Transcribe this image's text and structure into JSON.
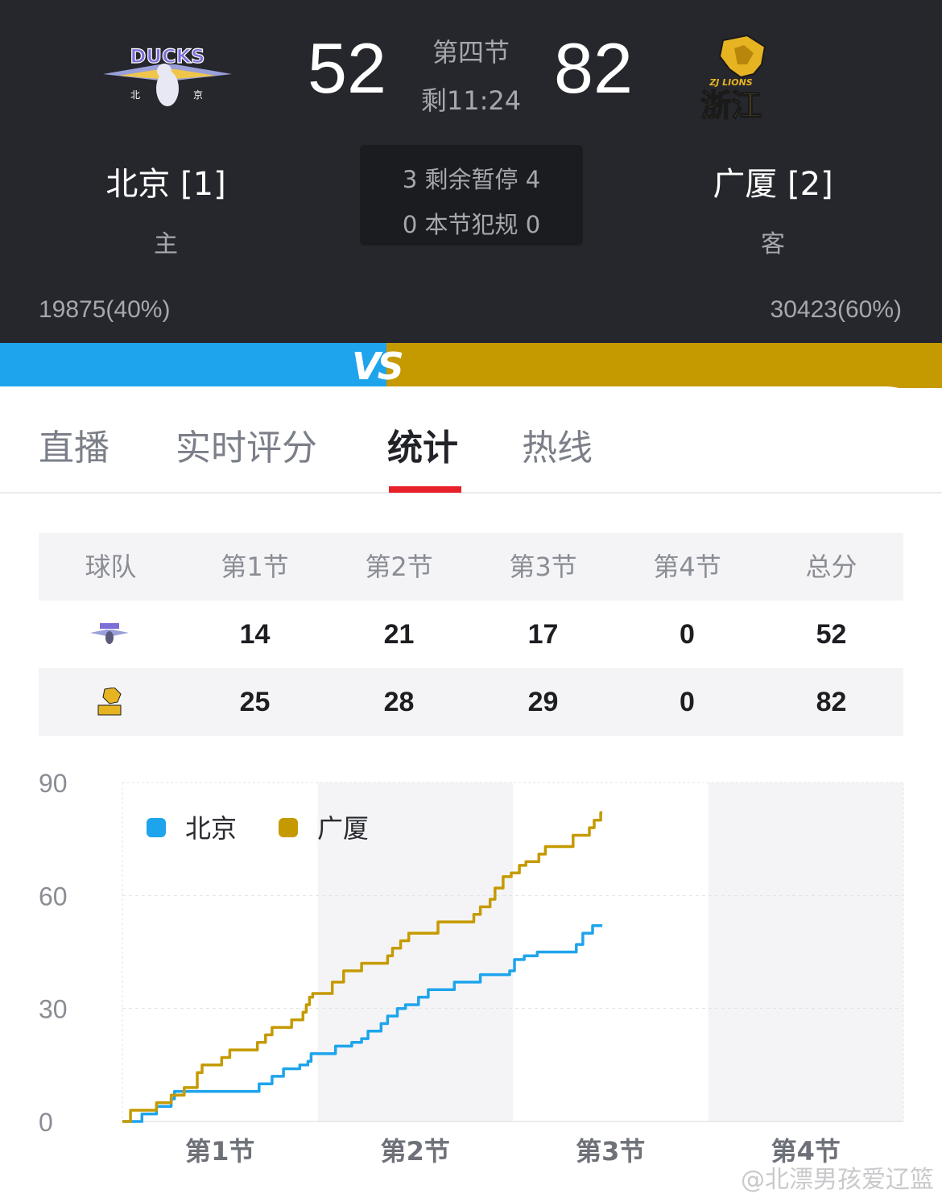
{
  "home": {
    "name": "北京 [1]",
    "role": "主",
    "score": "52",
    "support": "19875(40%)",
    "logo_text": "DUCKS",
    "logo_sub_left": "北",
    "logo_sub_right": "京"
  },
  "away": {
    "name": "广厦 [2]",
    "role": "客",
    "score": "82",
    "support": "30423(60%)",
    "logo_text": "ZJ LIONS",
    "logo_sub": "浙江"
  },
  "game": {
    "period": "第四节",
    "clock": "剩11:24",
    "timeouts_line": "3 剩余暂停 4",
    "fouls_line": "0 本节犯规 0"
  },
  "vs_text": "VS",
  "tabs": [
    "直播",
    "实时评分",
    "统计",
    "热线"
  ],
  "active_tab": "统计",
  "table": {
    "headers": [
      "球队",
      "第1节",
      "第2节",
      "第3节",
      "第4节",
      "总分"
    ],
    "rows": [
      {
        "team": "北京",
        "q1": "14",
        "q2": "21",
        "q3": "17",
        "q4": "0",
        "total": "52"
      },
      {
        "team": "广厦",
        "q1": "25",
        "q2": "28",
        "q3": "29",
        "q4": "0",
        "total": "82"
      }
    ]
  },
  "chart_data": {
    "type": "line",
    "ylim": [
      0,
      90
    ],
    "yticks": [
      "0",
      "30",
      "60",
      "90"
    ],
    "categories": [
      "第1节",
      "第2节",
      "第3节",
      "第4节"
    ],
    "grid": true,
    "legend": "top-left",
    "series": [
      {
        "name": "北京",
        "color": "#1ea4ec",
        "points": [
          [
            0,
            0
          ],
          [
            1.2,
            0
          ],
          [
            1.2,
            2
          ],
          [
            2.1,
            2
          ],
          [
            2.1,
            4
          ],
          [
            3,
            4
          ],
          [
            3,
            6
          ],
          [
            3.2,
            6
          ],
          [
            3.2,
            8
          ],
          [
            8.4,
            8
          ],
          [
            8.4,
            10
          ],
          [
            9.2,
            10
          ],
          [
            9.2,
            12
          ],
          [
            9.9,
            12
          ],
          [
            9.9,
            14
          ],
          [
            10.9,
            14
          ],
          [
            10.9,
            15
          ],
          [
            11.4,
            15
          ],
          [
            11.4,
            16
          ],
          [
            11.6,
            16
          ],
          [
            11.6,
            18
          ],
          [
            13.1,
            18
          ],
          [
            13.1,
            20
          ],
          [
            14.1,
            20
          ],
          [
            14.1,
            21
          ],
          [
            14.7,
            21
          ],
          [
            14.7,
            22
          ],
          [
            15.1,
            22
          ],
          [
            15.1,
            24
          ],
          [
            15.9,
            24
          ],
          [
            15.9,
            26
          ],
          [
            16.3,
            26
          ],
          [
            16.3,
            28
          ],
          [
            16.9,
            28
          ],
          [
            16.9,
            30
          ],
          [
            17.4,
            30
          ],
          [
            17.4,
            31
          ],
          [
            18.2,
            31
          ],
          [
            18.2,
            33
          ],
          [
            18.8,
            33
          ],
          [
            18.8,
            35
          ],
          [
            20.4,
            35
          ],
          [
            20.4,
            37
          ],
          [
            22.0,
            37
          ],
          [
            22.0,
            39
          ],
          [
            23.8,
            39
          ],
          [
            23.8,
            40
          ],
          [
            24.1,
            40
          ],
          [
            24.1,
            43
          ],
          [
            24.7,
            43
          ],
          [
            24.7,
            44
          ],
          [
            25.5,
            44
          ],
          [
            25.5,
            45
          ],
          [
            27.9,
            45
          ],
          [
            27.9,
            47
          ],
          [
            28.3,
            47
          ],
          [
            28.3,
            50
          ],
          [
            28.9,
            50
          ],
          [
            28.9,
            52
          ],
          [
            29.5,
            52
          ]
        ]
      },
      {
        "name": "广厦",
        "color": "#c59a00",
        "points": [
          [
            0,
            0
          ],
          [
            0.5,
            0
          ],
          [
            0.5,
            3
          ],
          [
            2.1,
            3
          ],
          [
            2.1,
            5
          ],
          [
            3,
            5
          ],
          [
            3,
            7
          ],
          [
            3.8,
            7
          ],
          [
            3.8,
            9
          ],
          [
            4.6,
            9
          ],
          [
            4.6,
            13
          ],
          [
            4.9,
            13
          ],
          [
            4.9,
            15
          ],
          [
            6.1,
            15
          ],
          [
            6.1,
            17
          ],
          [
            6.6,
            17
          ],
          [
            6.6,
            19
          ],
          [
            8.3,
            19
          ],
          [
            8.3,
            21
          ],
          [
            8.8,
            21
          ],
          [
            8.8,
            23
          ],
          [
            9.2,
            23
          ],
          [
            9.2,
            25
          ],
          [
            10.4,
            25
          ],
          [
            10.4,
            27
          ],
          [
            11.1,
            27
          ],
          [
            11.1,
            29
          ],
          [
            11.3,
            29
          ],
          [
            11.3,
            31
          ],
          [
            11.5,
            31
          ],
          [
            11.5,
            33
          ],
          [
            11.7,
            33
          ],
          [
            11.7,
            34
          ],
          [
            12.9,
            34
          ],
          [
            12.9,
            37
          ],
          [
            13.6,
            37
          ],
          [
            13.6,
            40
          ],
          [
            14.7,
            40
          ],
          [
            14.7,
            42
          ],
          [
            16.3,
            42
          ],
          [
            16.3,
            44
          ],
          [
            16.6,
            44
          ],
          [
            16.6,
            46
          ],
          [
            17.1,
            46
          ],
          [
            17.1,
            48
          ],
          [
            17.6,
            48
          ],
          [
            17.6,
            50
          ],
          [
            19.4,
            50
          ],
          [
            19.4,
            53
          ],
          [
            21.6,
            53
          ],
          [
            21.6,
            55
          ],
          [
            22.0,
            55
          ],
          [
            22.0,
            57
          ],
          [
            22.6,
            57
          ],
          [
            22.6,
            59
          ],
          [
            22.9,
            59
          ],
          [
            22.9,
            62
          ],
          [
            23.4,
            62
          ],
          [
            23.4,
            65
          ],
          [
            23.9,
            65
          ],
          [
            23.9,
            66
          ],
          [
            24.4,
            66
          ],
          [
            24.4,
            68
          ],
          [
            24.8,
            68
          ],
          [
            24.8,
            69
          ],
          [
            25.6,
            69
          ],
          [
            25.6,
            71
          ],
          [
            26.0,
            71
          ],
          [
            26.0,
            73
          ],
          [
            27.7,
            73
          ],
          [
            27.7,
            76
          ],
          [
            28.7,
            76
          ],
          [
            28.7,
            78
          ],
          [
            29.0,
            78
          ],
          [
            29.0,
            80
          ],
          [
            29.4,
            80
          ],
          [
            29.4,
            82
          ],
          [
            29.5,
            82
          ]
        ]
      }
    ]
  },
  "watermark": "@北漂男孩爱辽篮"
}
